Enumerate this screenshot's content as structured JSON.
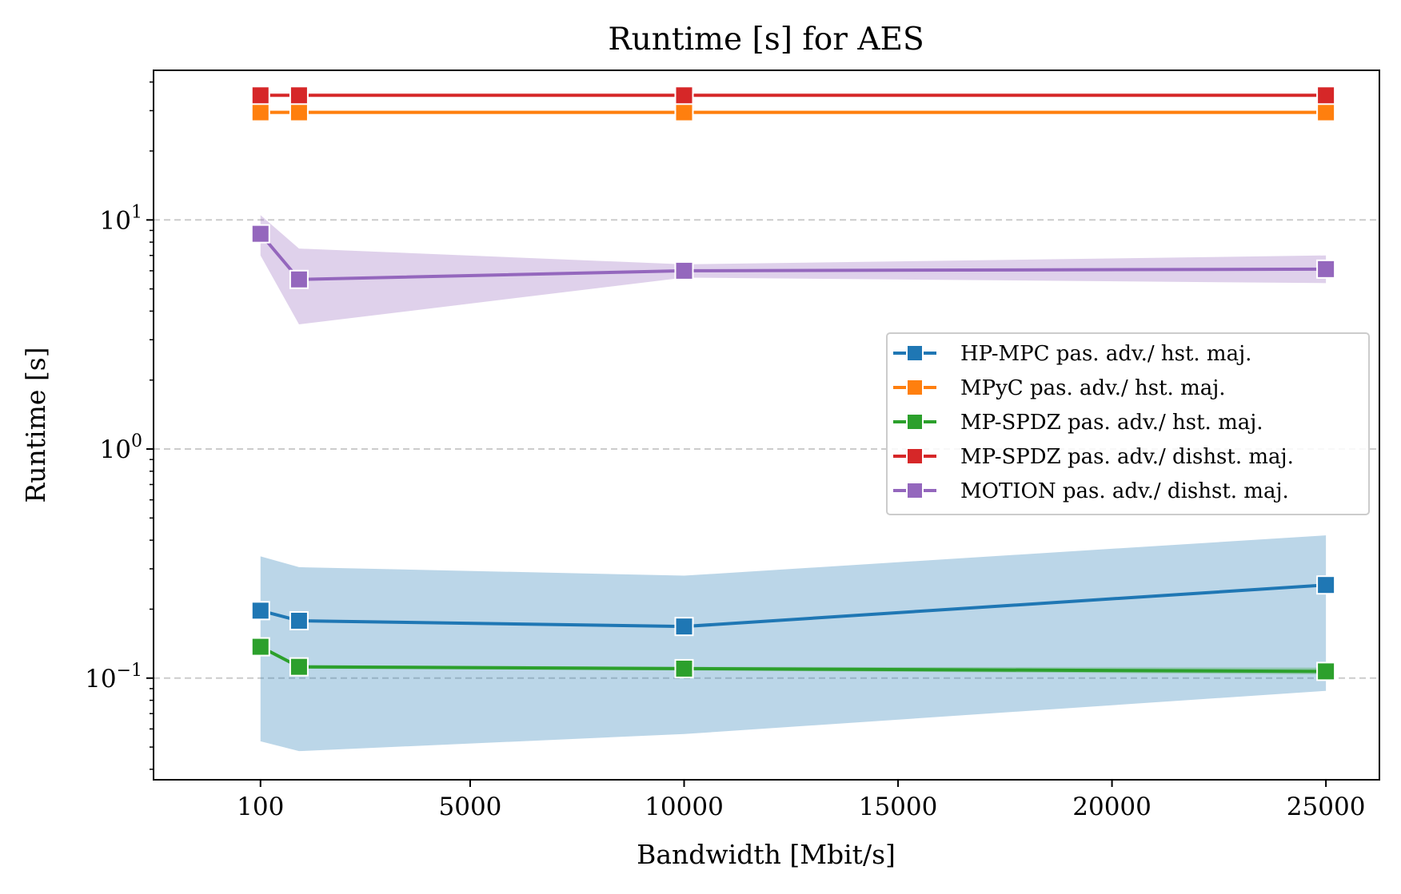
{
  "chart_data": {
    "type": "line",
    "title": "Runtime [s] for AES",
    "xlabel": "Bandwidth [Mbit/s]",
    "ylabel": "Runtime [s]",
    "yscale": "log",
    "xlim": [
      -2400,
      26250
    ],
    "ylim": [
      0.036,
      45
    ],
    "x_ticks": [
      100,
      5000,
      10000,
      15000,
      20000,
      25000
    ],
    "x_tick_labels": [
      "100",
      "5000",
      "10000",
      "15000",
      "20000",
      "25000"
    ],
    "y_ticks": [
      10,
      1,
      0.1
    ],
    "y_tick_labels": [
      {
        "base": "10",
        "exp": "1"
      },
      {
        "base": "10",
        "exp": "0"
      },
      {
        "base": "10",
        "exp": "−1"
      }
    ],
    "grid": "horizontal dashed at major y ticks",
    "legend_position": "center-right",
    "x": [
      100,
      1000,
      10000,
      25000
    ],
    "series": [
      {
        "name": "HP-MPC pas. adv./ hst. maj.",
        "color": "#1f77b4",
        "values": [
          0.197,
          0.178,
          0.168,
          0.255
        ],
        "band_low": [
          0.053,
          0.048,
          0.057,
          0.088
        ],
        "band_high": [
          0.34,
          0.305,
          0.28,
          0.42
        ]
      },
      {
        "name": "MPyC pas. adv./ hst. maj.",
        "color": "#ff7f0e",
        "values": [
          29.5,
          29.5,
          29.5,
          29.5
        ],
        "band_low": [
          29.0,
          29.0,
          29.0,
          29.0
        ],
        "band_high": [
          30.0,
          30.0,
          30.0,
          30.0
        ]
      },
      {
        "name": "MP-SPDZ pas. adv./ hst. maj.",
        "color": "#2ca02c",
        "values": [
          0.137,
          0.112,
          0.11,
          0.107
        ],
        "band_low": [
          0.135,
          0.11,
          0.108,
          0.104
        ],
        "band_high": [
          0.139,
          0.114,
          0.112,
          0.111
        ]
      },
      {
        "name": "MP-SPDZ pas. adv./ dishst. maj.",
        "color": "#d62728",
        "values": [
          35.0,
          35.0,
          35.0,
          35.0
        ],
        "band_low": [
          34.5,
          34.5,
          34.5,
          34.5
        ],
        "band_high": [
          35.5,
          35.5,
          35.5,
          35.5
        ]
      },
      {
        "name": "MOTION pas. adv./ dishst. maj.",
        "color": "#9467bd",
        "values": [
          8.7,
          5.5,
          6.0,
          6.1
        ],
        "band_low": [
          7.0,
          3.5,
          5.6,
          5.3
        ],
        "band_high": [
          10.5,
          7.5,
          6.4,
          7.0
        ]
      }
    ]
  }
}
